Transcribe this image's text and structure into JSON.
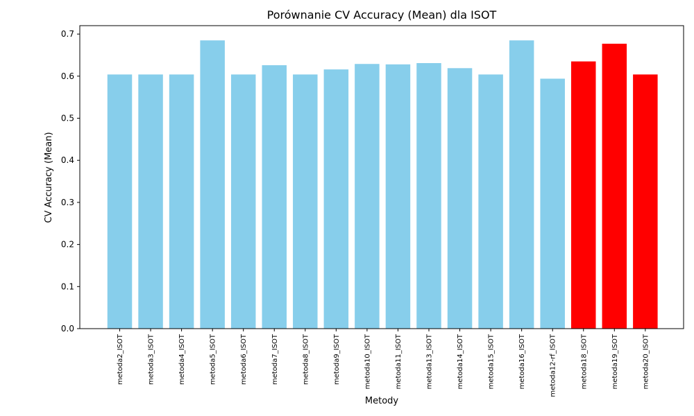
{
  "chart_data": {
    "type": "bar",
    "title": "Porównanie CV Accuracy (Mean) dla ISOT",
    "xlabel": "Metody",
    "ylabel": "CV Accuracy (Mean)",
    "ylim": [
      0,
      0.72
    ],
    "yticks": [
      "0.0",
      "0.1",
      "0.2",
      "0.3",
      "0.4",
      "0.5",
      "0.6",
      "0.7"
    ],
    "grid": false,
    "categories": [
      "metoda2_ISOT",
      "metoda3_ISOT",
      "metoda4_ISOT",
      "metoda5_ISOT",
      "metoda6_ISOT",
      "metoda7_ISOT",
      "metoda8_ISOT",
      "metoda9_ISOT",
      "metoda10_ISOT",
      "metoda11_ISOT",
      "metoda13_ISOT",
      "metoda14_ISOT",
      "metoda15_ISOT",
      "metoda16_ISOT",
      "metoda12-rf_ISOT",
      "metoda18_ISOT",
      "metoda19_ISOT",
      "metoda20_ISOT"
    ],
    "values": [
      0.604,
      0.604,
      0.604,
      0.685,
      0.604,
      0.626,
      0.604,
      0.616,
      0.629,
      0.628,
      0.631,
      0.619,
      0.604,
      0.685,
      0.594,
      0.635,
      0.677,
      0.604
    ],
    "colors": [
      "#87ceeb",
      "#87ceeb",
      "#87ceeb",
      "#87ceeb",
      "#87ceeb",
      "#87ceeb",
      "#87ceeb",
      "#87ceeb",
      "#87ceeb",
      "#87ceeb",
      "#87ceeb",
      "#87ceeb",
      "#87ceeb",
      "#87ceeb",
      "#87ceeb",
      "#ff0000",
      "#ff0000",
      "#ff0000"
    ]
  }
}
